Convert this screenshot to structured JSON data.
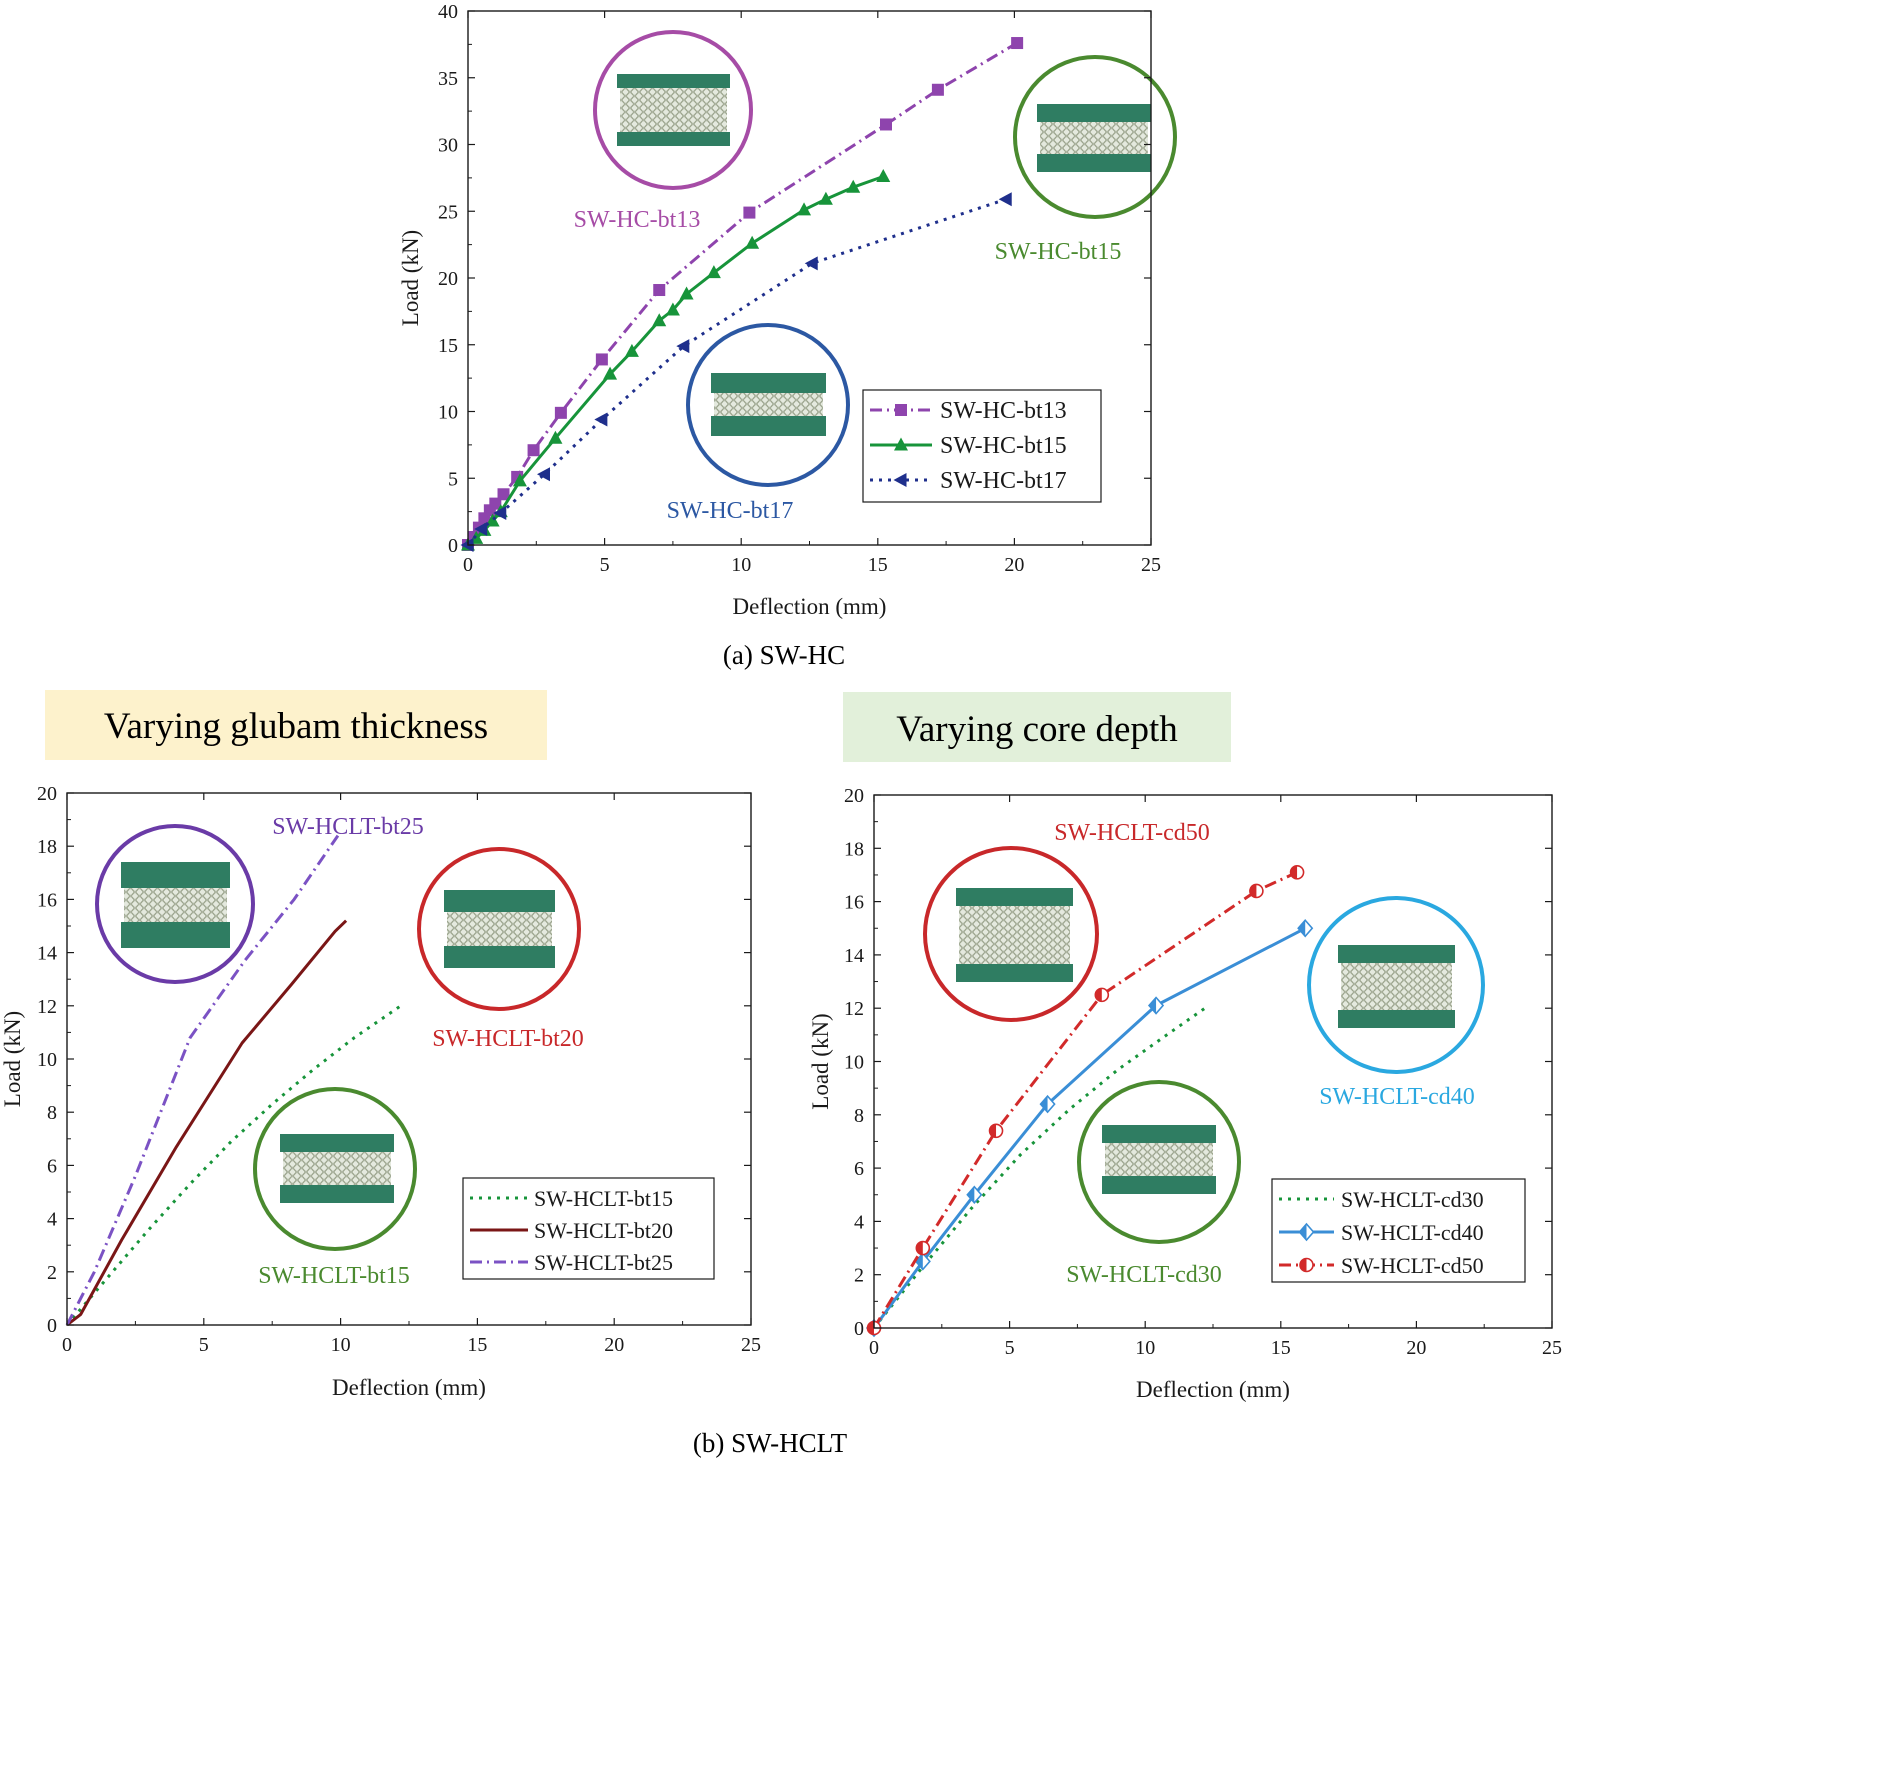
{
  "figure_captions": {
    "a": "(a) SW-HC",
    "b": "(b) SW-HCLT"
  },
  "banners": {
    "left": {
      "text": "Varying glubam thickness",
      "color": "#fdf2cc"
    },
    "right": {
      "text": "Varying core depth",
      "color": "#e2f0da"
    }
  },
  "colors": {
    "purple": "#8e44ad",
    "green": "#17943a",
    "navy": "#1f2f8c",
    "darkred": "#7a1616",
    "violet": "#7b52c4",
    "red": "#d22a2a",
    "blue": "#3a8ed6",
    "panel_green": "#2f7d62",
    "core": "#cfd6c6",
    "circle_purple": "#a64ca6",
    "circle_green": "#4a8a2f",
    "circle_navy": "#2c58a3",
    "circle_red": "#c8282a",
    "circle_violet": "#6a3ba7",
    "circle_cyan": "#2aa8e0"
  },
  "chart_data": [
    {
      "id": "a",
      "type": "line",
      "title": "",
      "xlabel": "Deflection (mm)",
      "ylabel": "Load (kN)",
      "xlim": [
        0,
        25
      ],
      "ylim": [
        0,
        40
      ],
      "xticks": [
        0,
        5,
        10,
        15,
        20,
        25
      ],
      "yticks": [
        0,
        5,
        10,
        15,
        20,
        25,
        30,
        35,
        40
      ],
      "legend_position": "bottom-right",
      "series": [
        {
          "name": "SW-HC-bt13",
          "color": "#8e44ad",
          "dash": "dashdot",
          "marker": "square",
          "x": [
            0,
            0.2,
            0.4,
            0.6,
            0.8,
            1.0,
            1.3,
            1.8,
            2.4,
            3.4,
            4.9,
            7.0,
            10.3,
            15.3,
            17.2,
            20.1
          ],
          "y": [
            0,
            0.6,
            1.3,
            2.0,
            2.6,
            3.1,
            3.8,
            5.1,
            7.1,
            9.9,
            13.9,
            19.1,
            24.9,
            31.5,
            34.1,
            37.6
          ]
        },
        {
          "name": "SW-HC-bt15",
          "color": "#17943a",
          "dash": "solid",
          "marker": "triangle-up",
          "x": [
            0,
            0.3,
            0.6,
            0.9,
            1.2,
            1.9,
            3.2,
            5.2,
            6.0,
            7.0,
            7.5,
            8.0,
            9.0,
            10.4,
            12.3,
            13.1,
            14.1,
            15.2
          ],
          "y": [
            0,
            0.5,
            1.1,
            1.8,
            2.5,
            4.8,
            8.0,
            12.8,
            14.5,
            16.8,
            17.6,
            18.8,
            20.4,
            22.6,
            25.1,
            25.9,
            26.8,
            27.6
          ]
        },
        {
          "name": "SW-HC-bt17",
          "color": "#1f2f8c",
          "dash": "dot",
          "marker": "triangle-left",
          "x": [
            0,
            0.5,
            1.2,
            2.8,
            4.9,
            7.9,
            12.6,
            19.7
          ],
          "y": [
            0,
            1.2,
            2.4,
            5.3,
            9.4,
            14.9,
            21.1,
            25.9
          ]
        }
      ],
      "annotations": [
        {
          "text": "SW-HC-bt13",
          "color": "#a64ca6"
        },
        {
          "text": "SW-HC-bt15",
          "color": "#4a8a2f"
        },
        {
          "text": "SW-HC-bt17",
          "color": "#2c58a3"
        }
      ]
    },
    {
      "id": "b1",
      "type": "line",
      "title": "",
      "xlabel": "Deflection (mm)",
      "ylabel": "Load (kN)",
      "xlim": [
        0,
        25
      ],
      "ylim": [
        0,
        20
      ],
      "xticks": [
        0,
        5,
        10,
        15,
        20,
        25
      ],
      "yticks": [
        0,
        2,
        4,
        6,
        8,
        10,
        12,
        14,
        16,
        18,
        20
      ],
      "legend_position": "bottom-right",
      "series": [
        {
          "name": "SW-HCLT-bt15",
          "color": "#17943a",
          "dash": "dot",
          "marker": "none",
          "x": [
            0,
            1.5,
            3.0,
            4.5,
            6.0,
            7.5,
            9.0,
            10.5,
            12.2
          ],
          "y": [
            0,
            1.8,
            3.6,
            5.3,
            6.9,
            8.3,
            9.6,
            10.8,
            12.0
          ]
        },
        {
          "name": "SW-HCLT-bt20",
          "color": "#7a1616",
          "dash": "solid",
          "marker": "none",
          "x": [
            0,
            0.5,
            2.0,
            4.0,
            6.4,
            8.2,
            9.8,
            10.2
          ],
          "y": [
            0,
            0.4,
            3.2,
            6.7,
            10.6,
            12.8,
            14.8,
            15.2
          ]
        },
        {
          "name": "SW-HCLT-bt25",
          "color": "#7b52c4",
          "dash": "dashdot",
          "marker": "none",
          "x": [
            0,
            1.0,
            2.5,
            4.5,
            6.5,
            8.3,
            9.9
          ],
          "y": [
            0,
            2.0,
            5.6,
            10.8,
            13.7,
            16.0,
            18.4
          ]
        }
      ],
      "annotations": [
        {
          "text": "SW-HCLT-bt25",
          "color": "#6a3ba7"
        },
        {
          "text": "SW-HCLT-bt20",
          "color": "#c8282a"
        },
        {
          "text": "SW-HCLT-bt15",
          "color": "#4a8a2f"
        }
      ]
    },
    {
      "id": "b2",
      "type": "line",
      "title": "",
      "xlabel": "Deflection (mm)",
      "ylabel": "Load (kN)",
      "xlim": [
        0,
        25
      ],
      "ylim": [
        0,
        20
      ],
      "xticks": [
        0,
        5,
        10,
        15,
        20,
        25
      ],
      "yticks": [
        0,
        2,
        4,
        6,
        8,
        10,
        12,
        14,
        16,
        18,
        20
      ],
      "legend_position": "bottom-right",
      "series": [
        {
          "name": "SW-HCLT-cd30",
          "color": "#17943a",
          "dash": "dot",
          "marker": "none",
          "x": [
            0,
            1.8,
            3.6,
            5.4,
            7.2,
            9.0,
            10.8,
            12.2
          ],
          "y": [
            0,
            2.3,
            4.5,
            6.5,
            8.2,
            9.7,
            11.0,
            12.0
          ]
        },
        {
          "name": "SW-HCLT-cd40",
          "color": "#3a8ed6",
          "dash": "solid",
          "marker": "half-diamond",
          "x": [
            0,
            1.8,
            3.7,
            6.4,
            10.4,
            15.9
          ],
          "y": [
            0,
            2.5,
            5.0,
            8.4,
            12.1,
            15.0
          ]
        },
        {
          "name": "SW-HCLT-cd50",
          "color": "#d22a2a",
          "dash": "dashdot",
          "marker": "half-circle",
          "x": [
            0,
            1.8,
            4.5,
            8.4,
            14.1,
            15.6
          ],
          "y": [
            0,
            3.0,
            7.4,
            12.5,
            16.4,
            17.1
          ]
        }
      ],
      "annotations": [
        {
          "text": "SW-HCLT-cd50",
          "color": "#c8282a"
        },
        {
          "text": "SW-HCLT-cd40",
          "color": "#2aa8e0"
        },
        {
          "text": "SW-HCLT-cd30",
          "color": "#4a8a2f"
        }
      ]
    }
  ]
}
